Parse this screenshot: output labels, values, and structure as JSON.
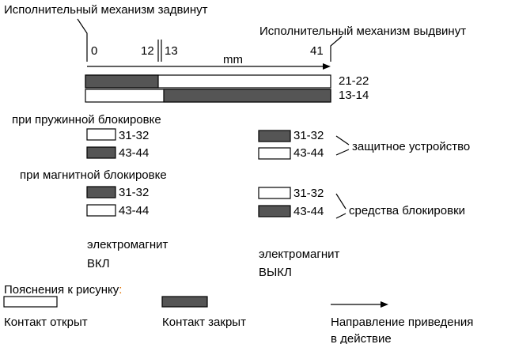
{
  "header": {
    "retracted": "Исполнительный механизм задвинут",
    "extended": "Исполнительный механизм выдвинут"
  },
  "scale": {
    "labels": [
      "0",
      "12",
      "13",
      "41"
    ],
    "unit": "mm"
  },
  "bars": [
    "21-22",
    "13-14"
  ],
  "spring": {
    "title": "при пружинной блокировке",
    "left": [
      "31-32",
      "43-44"
    ],
    "right": [
      "31-32",
      "43-44"
    ],
    "note": "защитное устройство"
  },
  "magnetic": {
    "title": "при магнитной блокировке",
    "left": [
      "31-32",
      "43-44"
    ],
    "right": [
      "31-32",
      "43-44"
    ],
    "note": "средства блокировки"
  },
  "states": {
    "on": [
      "электромагнит",
      "ВКЛ"
    ],
    "off": [
      "электромагнит",
      "ВЫКЛ"
    ]
  },
  "legend": {
    "title": "Пояснения к рисунку",
    "colon": ":",
    "open": "Контакт открыт",
    "closed": "Контакт закрыт",
    "direction": [
      "Направление приведения",
      "в действие"
    ]
  }
}
